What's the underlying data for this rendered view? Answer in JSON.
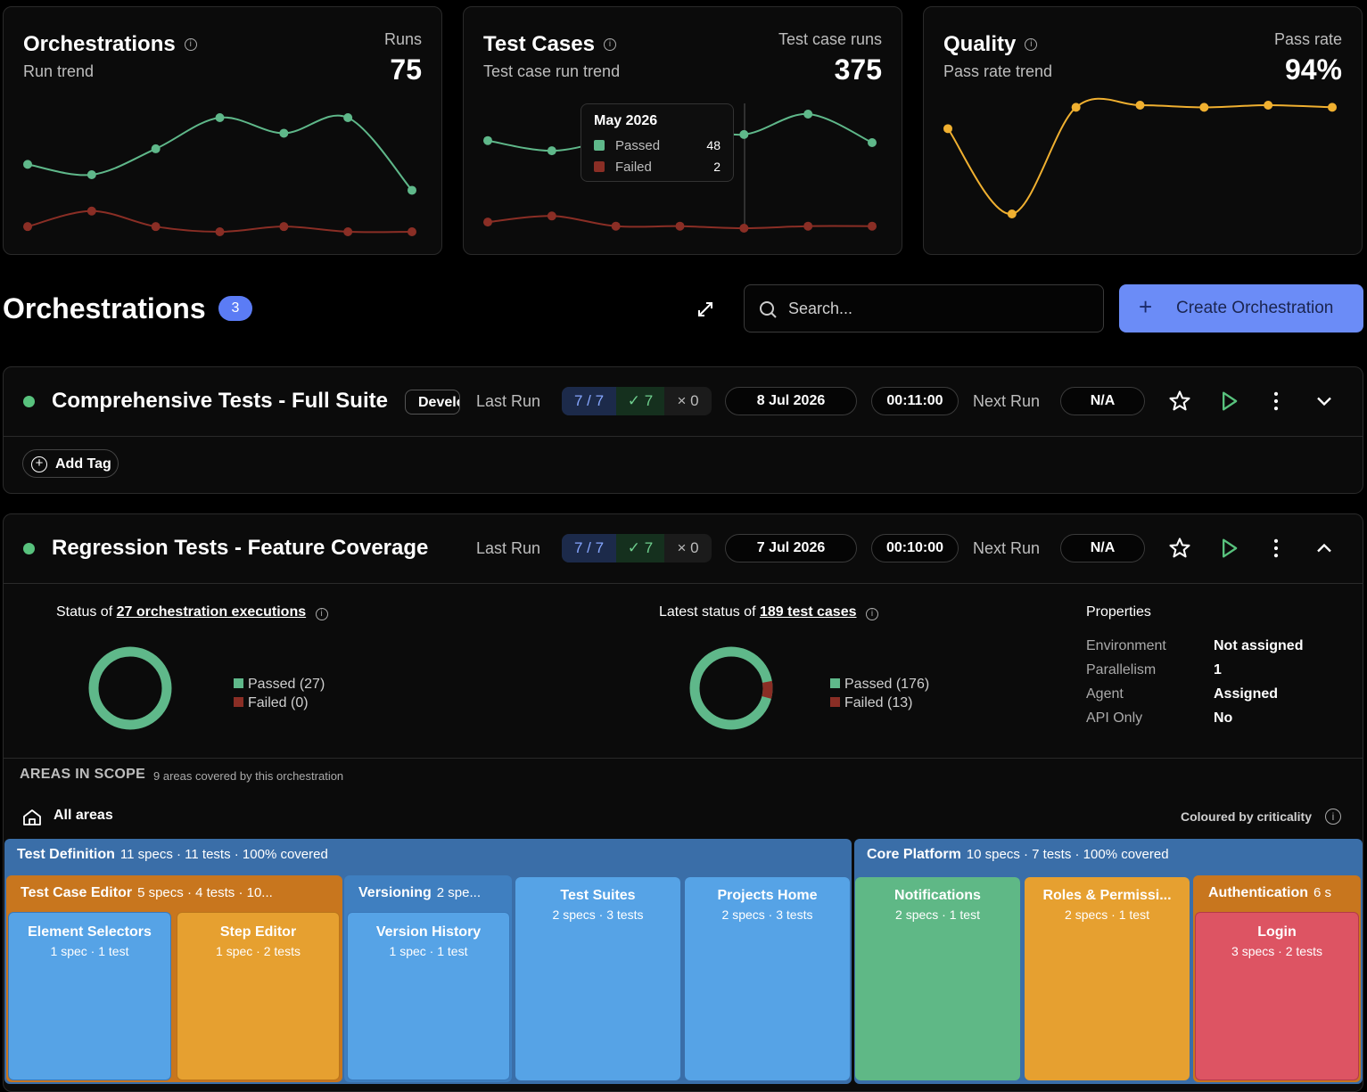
{
  "cards": {
    "orchestrations": {
      "title": "Orchestrations",
      "subtitle": "Run trend",
      "metric_label": "Runs",
      "metric": "75"
    },
    "test_cases": {
      "title": "Test Cases",
      "subtitle": "Test case run trend",
      "metric_label": "Test case runs",
      "metric": "375",
      "tooltip": {
        "title": "May 2026",
        "passed_label": "Passed",
        "passed_value": "48",
        "failed_label": "Failed",
        "failed_value": "2"
      }
    },
    "quality": {
      "title": "Quality",
      "subtitle": "Pass rate trend",
      "metric_label": "Pass rate",
      "metric": "94%"
    }
  },
  "chart_data": [
    {
      "type": "line",
      "series": [
        {
          "name": "",
          "values": [
            17,
            15,
            20,
            26,
            23,
            26,
            12
          ],
          "color": "#5fb88a"
        },
        {
          "name": "",
          "values": [
            5,
            8,
            5,
            4,
            5,
            4,
            4
          ],
          "color": "#8a2e25"
        }
      ]
    },
    {
      "type": "line",
      "series": [
        {
          "name": "Passed",
          "values": [
            45,
            40,
            46,
            52,
            48,
            58,
            44
          ],
          "color": "#5fb88a"
        },
        {
          "name": "Failed",
          "values": [
            5,
            8,
            3,
            3,
            2,
            3,
            3
          ],
          "color": "#8a2e25"
        }
      ]
    },
    {
      "type": "line",
      "series": [
        {
          "name": "",
          "values": [
            90,
            50,
            100,
            101,
            100,
            101,
            100
          ],
          "color": "#f0b030"
        }
      ]
    }
  ],
  "header": {
    "title": "Orchestrations",
    "count": "3",
    "search_placeholder": "Search...",
    "create_label": "Create Orchestration",
    "plus": "+"
  },
  "orchestrations": [
    {
      "name": "Comprehensive Tests - Full Suite",
      "tag": "Development",
      "last_run_label": "Last Run",
      "ratio": "7 / 7",
      "passed": "✓ 7",
      "failed": "× 0",
      "date": "8 Jul 2026",
      "duration": "00:11:00",
      "next_run_label": "Next Run",
      "next_run": "N/A",
      "add_tag": "Add Tag"
    },
    {
      "name": "Regression Tests - Feature Coverage",
      "last_run_label": "Last Run",
      "ratio": "7 / 7",
      "passed": "✓ 7",
      "failed": "× 0",
      "date": "7 Jul 2026",
      "duration": "00:10:00",
      "next_run_label": "Next Run",
      "next_run": "N/A"
    }
  ],
  "details": {
    "exec_prefix": "Status of",
    "exec_link": "27 orchestration executions",
    "exec_passed": "Passed (27)",
    "exec_failed": "Failed (0)",
    "exec_pass_value": 27,
    "exec_fail_value": 0,
    "tc_prefix": "Latest status of",
    "tc_link": "189 test cases",
    "tc_passed": "Passed (176)",
    "tc_failed": "Failed (13)",
    "tc_pass_value": 176,
    "tc_fail_value": 13,
    "props_title": "Properties",
    "props": [
      {
        "k": "Environment",
        "v": "Not assigned"
      },
      {
        "k": "Parallelism",
        "v": "1"
      },
      {
        "k": "Agent",
        "v": "Assigned"
      },
      {
        "k": "API Only",
        "v": "No"
      }
    ]
  },
  "areas": {
    "title": "AREAS IN SCOPE",
    "subtitle": "9 areas covered by this orchestration",
    "all_areas": "All areas",
    "coloured_by": "Coloured by criticality",
    "groups": [
      {
        "name": "Test Definition",
        "meta": "11 specs · 11 tests · 100% covered"
      },
      {
        "name": "Core Platform",
        "meta": "10 specs · 7 tests · 100% covered"
      }
    ],
    "sub": [
      {
        "name": "Test Case Editor",
        "meta": "5 specs · 4 tests · 10..."
      },
      {
        "name": "Versioning",
        "meta": "2 spe..."
      },
      {
        "name": "Authentication",
        "meta": "6 s"
      }
    ],
    "leaves": [
      {
        "name": "Element Selectors",
        "meta": "1 spec · 1 test"
      },
      {
        "name": "Step Editor",
        "meta": "1 spec · 2 tests"
      },
      {
        "name": "Version History",
        "meta": "1 spec · 1 test"
      },
      {
        "name": "Test Suites",
        "meta": "2 specs · 3 tests"
      },
      {
        "name": "Projects Home",
        "meta": "2 specs · 3 tests"
      },
      {
        "name": "Notifications",
        "meta": "2 specs · 1 test"
      },
      {
        "name": "Roles & Permissi...",
        "meta": "2 specs · 1 test"
      },
      {
        "name": "Login",
        "meta": "3 specs · 2 tests"
      }
    ]
  }
}
